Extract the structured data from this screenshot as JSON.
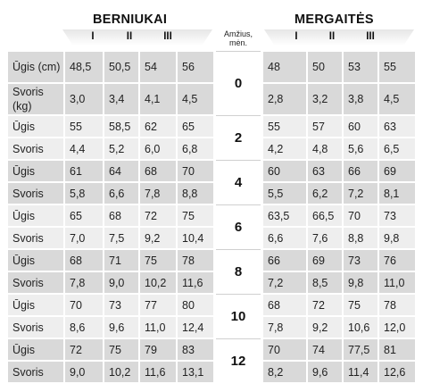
{
  "boys": {
    "title": "BERNIUKAI",
    "columns": [
      "I",
      "II",
      "III"
    ]
  },
  "girls": {
    "title": "MERGAITĖS",
    "columns": [
      "I",
      "II",
      "III"
    ]
  },
  "age_header": {
    "line1": "Amžius,",
    "line2": "mėn."
  },
  "ages": [
    "0",
    "2",
    "4",
    "6",
    "8",
    "10",
    "12"
  ],
  "boys_rows": [
    {
      "label": "Ūgis (cm)",
      "values": [
        "48,5",
        "50,5",
        "54",
        "56"
      ]
    },
    {
      "label": "Svoris (kg)",
      "values": [
        "3,0",
        "3,4",
        "4,1",
        "4,5"
      ]
    },
    {
      "label": "Ūgis",
      "values": [
        "55",
        "58,5",
        "62",
        "65"
      ]
    },
    {
      "label": "Svoris",
      "values": [
        "4,4",
        "5,2",
        "6,0",
        "6,8"
      ]
    },
    {
      "label": "Ūgis",
      "values": [
        "61",
        "64",
        "68",
        "70"
      ]
    },
    {
      "label": "Svoris",
      "values": [
        "5,8",
        "6,6",
        "7,8",
        "8,8"
      ]
    },
    {
      "label": "Ūgis",
      "values": [
        "65",
        "68",
        "72",
        "75"
      ]
    },
    {
      "label": "Svoris",
      "values": [
        "7,0",
        "7,5",
        "9,2",
        "10,4"
      ]
    },
    {
      "label": "Ūgis",
      "values": [
        "68",
        "71",
        "75",
        "78"
      ]
    },
    {
      "label": "Svoris",
      "values": [
        "7,8",
        "9,0",
        "10,2",
        "11,6"
      ]
    },
    {
      "label": "Ūgis",
      "values": [
        "70",
        "73",
        "77",
        "80"
      ]
    },
    {
      "label": "Svoris",
      "values": [
        "8,6",
        "9,6",
        "11,0",
        "12,4"
      ]
    },
    {
      "label": "Ūgis",
      "values": [
        "72",
        "75",
        "79",
        "83"
      ]
    },
    {
      "label": "Svoris",
      "values": [
        "9,0",
        "10,2",
        "11,6",
        "13,1"
      ]
    }
  ],
  "girls_rows": [
    {
      "values": [
        "48",
        "50",
        "53",
        "55"
      ]
    },
    {
      "values": [
        "2,8",
        "3,2",
        "3,8",
        "4,5"
      ]
    },
    {
      "values": [
        "55",
        "57",
        "60",
        "63"
      ]
    },
    {
      "values": [
        "4,2",
        "4,8",
        "5,6",
        "6,5"
      ]
    },
    {
      "values": [
        "60",
        "63",
        "66",
        "69"
      ]
    },
    {
      "values": [
        "5,5",
        "6,2",
        "7,2",
        "8,1"
      ]
    },
    {
      "values": [
        "63,5",
        "66,5",
        "70",
        "73"
      ]
    },
    {
      "values": [
        "6,6",
        "7,6",
        "8,8",
        "9,8"
      ]
    },
    {
      "values": [
        "66",
        "69",
        "73",
        "76"
      ]
    },
    {
      "values": [
        "7,2",
        "8,5",
        "9,8",
        "11,0"
      ]
    },
    {
      "values": [
        "68",
        "72",
        "75",
        "78"
      ]
    },
    {
      "values": [
        "7,8",
        "9,2",
        "10,6",
        "12,0"
      ]
    },
    {
      "values": [
        "70",
        "74",
        "77,5",
        "81"
      ]
    },
    {
      "values": [
        "8,2",
        "9,6",
        "11,4",
        "12,6"
      ]
    }
  ]
}
